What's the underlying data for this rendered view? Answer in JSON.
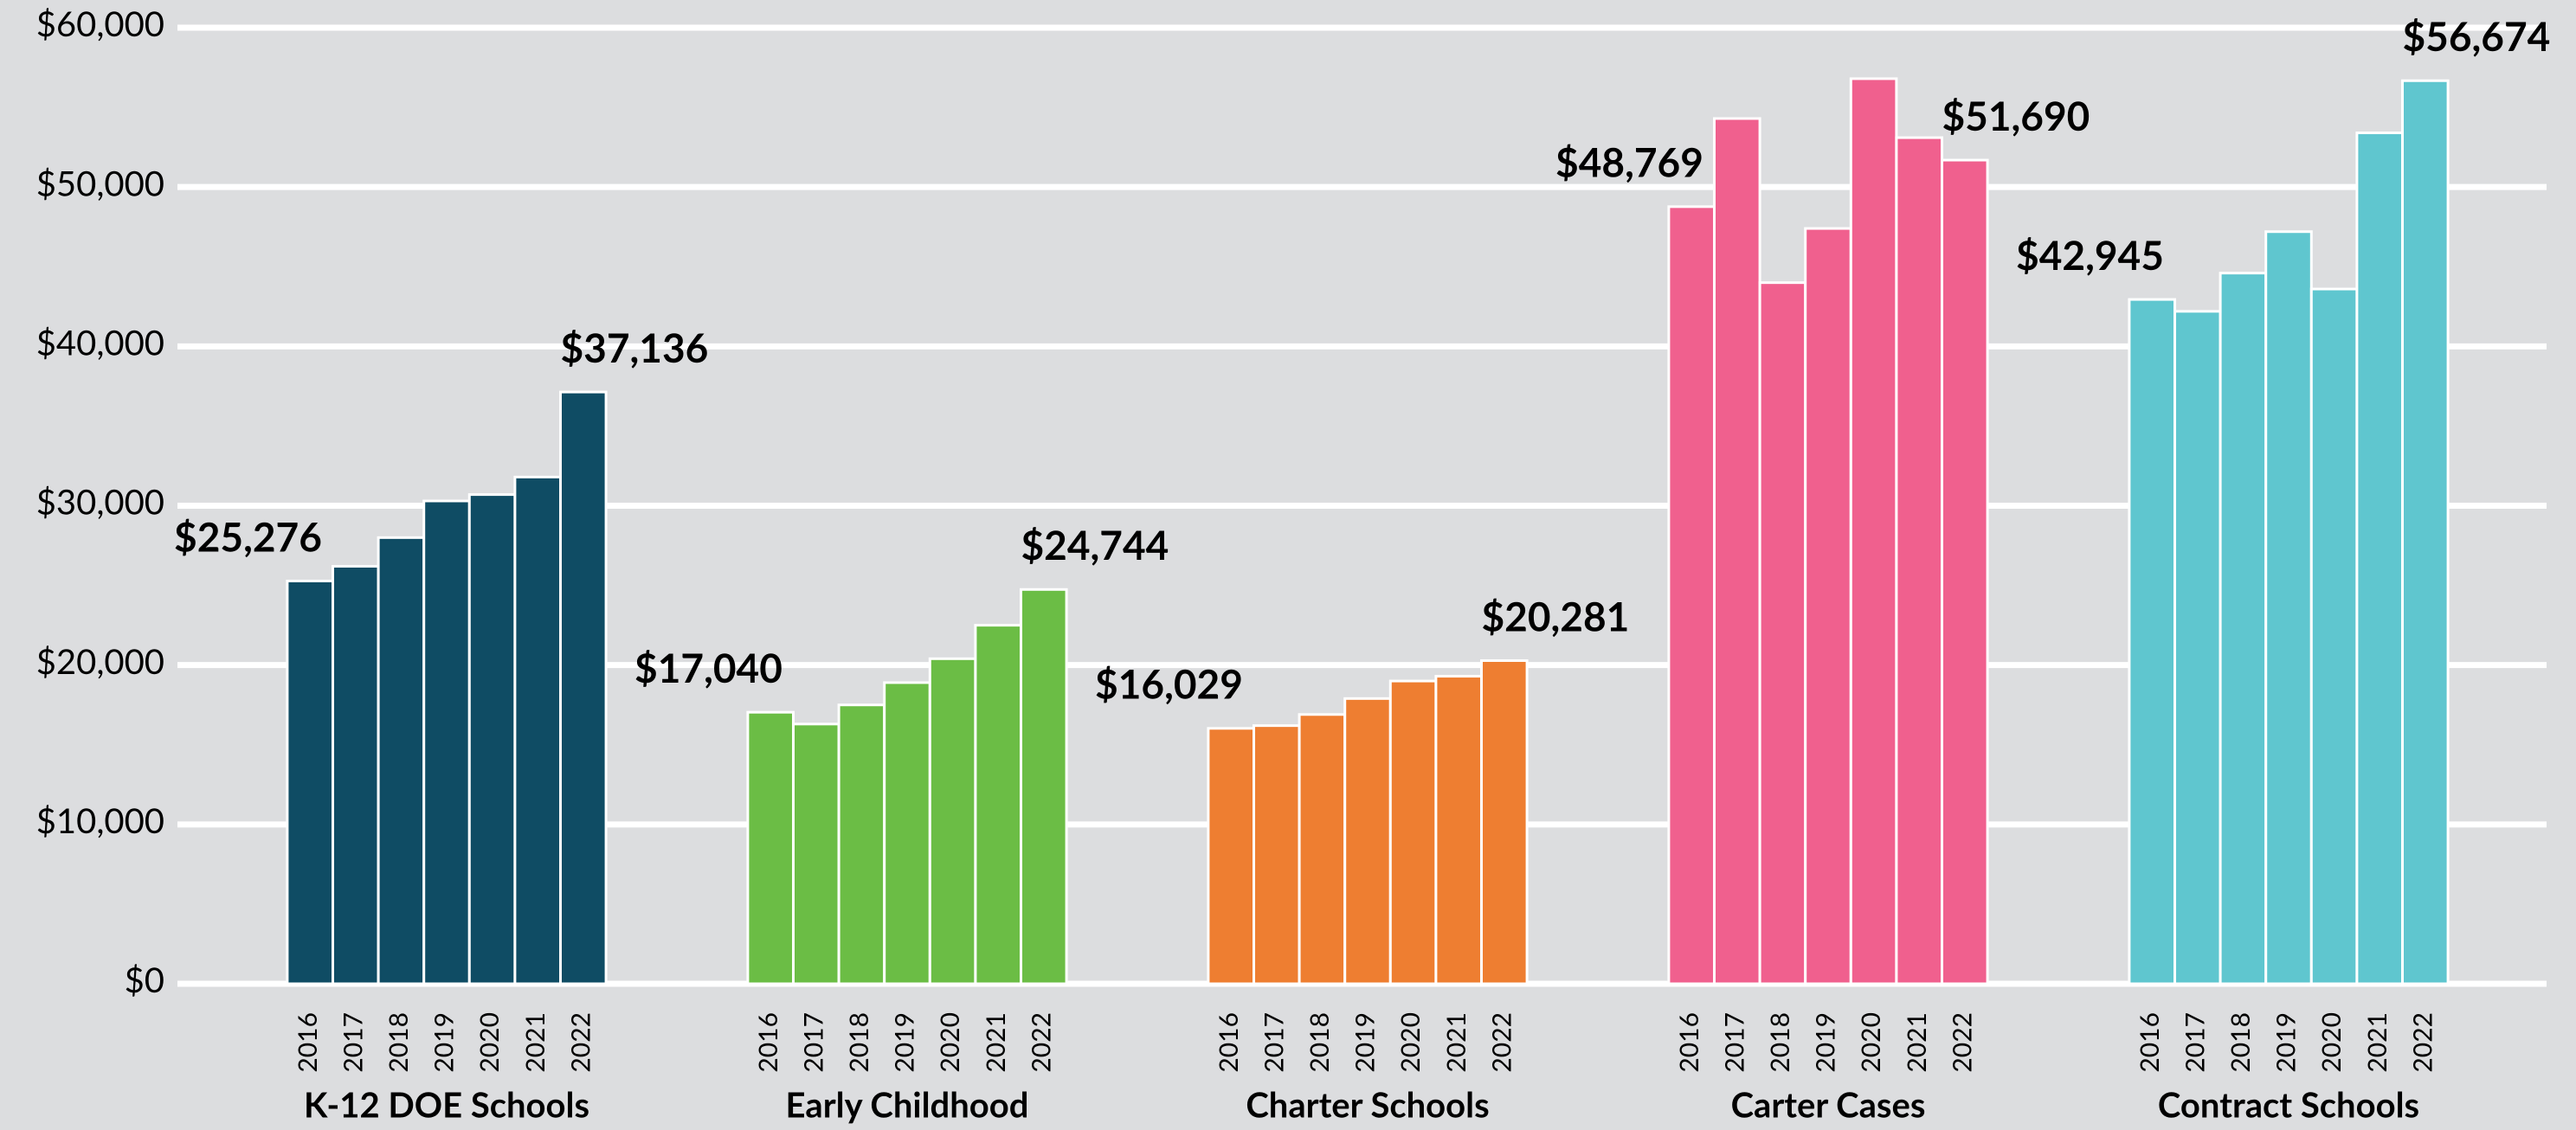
{
  "chart_data": {
    "type": "grouped-bar",
    "years": [
      2016,
      2017,
      2018,
      2019,
      2020,
      2021,
      2022
    ],
    "groups": [
      {
        "name": "K-12 DOE Schools",
        "color": "#0f4c64",
        "values": [
          25276,
          26200,
          28000,
          30300,
          30700,
          31800,
          37136
        ],
        "value_labels": [
          "$25,276",
          null,
          null,
          null,
          null,
          null,
          "$37,136"
        ]
      },
      {
        "name": "Early Childhood",
        "color": "#6bbd45",
        "values": [
          17040,
          16300,
          17500,
          18900,
          20400,
          22500,
          24744
        ],
        "value_labels": [
          "$17,040",
          null,
          null,
          null,
          null,
          null,
          "$24,744"
        ]
      },
      {
        "name": "Charter Schools",
        "color": "#ee7e31",
        "values": [
          16029,
          16200,
          16900,
          17900,
          19000,
          19300,
          20281
        ],
        "value_labels": [
          "$16,029",
          null,
          null,
          null,
          null,
          null,
          "$20,281"
        ]
      },
      {
        "name": "Carter Cases",
        "color": "#f0608e",
        "values": [
          48769,
          54300,
          44000,
          47400,
          56800,
          53100,
          51690
        ],
        "value_labels": [
          "$48,769",
          null,
          null,
          null,
          null,
          null,
          "$51,690"
        ]
      },
      {
        "name": "Contract Schools",
        "color": "#5fc6cf",
        "values": [
          42945,
          42200,
          44600,
          47200,
          43600,
          53400,
          56674
        ],
        "value_labels": [
          "$42,945",
          null,
          null,
          null,
          null,
          null,
          "$56,674"
        ]
      }
    ],
    "ylim": [
      0,
      60000
    ],
    "yticks": [
      {
        "value": 0,
        "label": "$0"
      },
      {
        "value": 10000,
        "label": "$10,000"
      },
      {
        "value": 20000,
        "label": "$20,000"
      },
      {
        "value": 30000,
        "label": "$30,000"
      },
      {
        "value": 40000,
        "label": "$40,000"
      },
      {
        "value": 50000,
        "label": "$50,000"
      },
      {
        "value": 60000,
        "label": "$60,000"
      }
    ],
    "grid": true
  }
}
